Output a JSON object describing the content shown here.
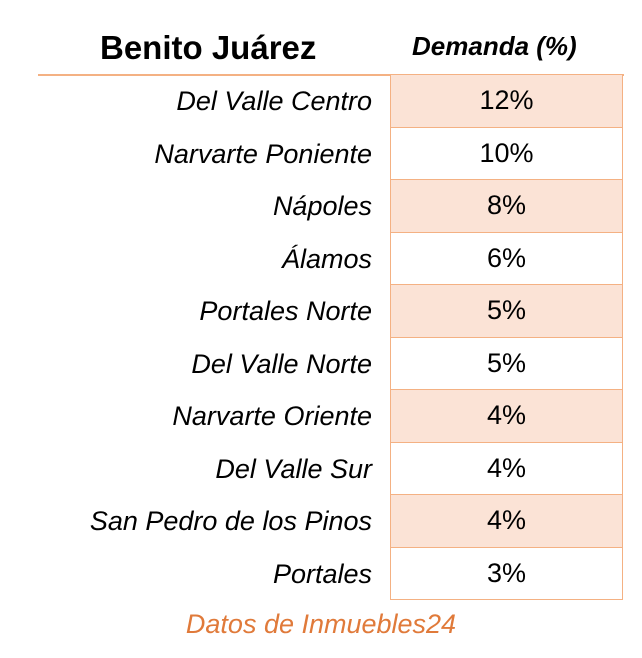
{
  "header": {
    "title": "Benito Juárez",
    "column_label": "Demanda (%)"
  },
  "rows": [
    {
      "name": "Del Valle Centro",
      "value": "12%"
    },
    {
      "name": "Narvarte Poniente",
      "value": "10%"
    },
    {
      "name": "Nápoles",
      "value": "8%"
    },
    {
      "name": "Álamos",
      "value": "6%"
    },
    {
      "name": "Portales Norte",
      "value": "5%"
    },
    {
      "name": "Del Valle Norte",
      "value": "5%"
    },
    {
      "name": "Narvarte Oriente",
      "value": "4%"
    },
    {
      "name": "Del Valle Sur",
      "value": "4%"
    },
    {
      "name": "San Pedro de los Pinos",
      "value": "4%"
    },
    {
      "name": "Portales",
      "value": "3%"
    }
  ],
  "footer": {
    "source": "Datos de Inmuebles24"
  },
  "colors": {
    "accent_border": "#f4b183",
    "stripe_fill": "#fbe3d6",
    "source_text": "#e07a3a"
  }
}
